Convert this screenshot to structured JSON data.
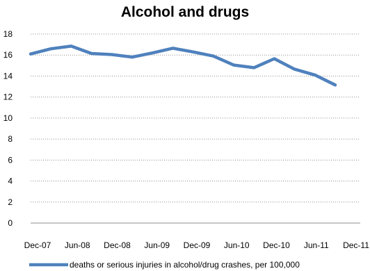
{
  "chart_data": {
    "type": "line",
    "title": "Alcohol and drugs",
    "xlabel": "",
    "ylabel": "",
    "ylim": [
      0,
      18
    ],
    "yticks": [
      0,
      2,
      4,
      6,
      8,
      10,
      12,
      14,
      16,
      18
    ],
    "xtick_labels": [
      "Dec-07",
      "Jun-08",
      "Dec-08",
      "Jun-09",
      "Dec-09",
      "Jun-10",
      "Dec-10",
      "Jun-11",
      "Dec-11"
    ],
    "grid": "horizontal dotted",
    "legend_position": "bottom",
    "x": [
      "Dec-07",
      "Mar-08",
      "Jun-08",
      "Sep-08",
      "Dec-08",
      "Mar-09",
      "Jun-09",
      "Sep-09",
      "Dec-09",
      "Mar-10",
      "Jun-10",
      "Sep-10",
      "Dec-10",
      "Mar-11",
      "Jun-11",
      "Sep-11"
    ],
    "series": [
      {
        "name": "deaths or serious injuries in alcohol/drug crashes, per 100,000",
        "color": "#4f81bd",
        "values": [
          16.1,
          16.6,
          16.85,
          16.15,
          16.05,
          15.8,
          16.2,
          16.65,
          16.3,
          15.9,
          15.05,
          14.8,
          15.65,
          14.65,
          14.1,
          13.15
        ]
      }
    ]
  }
}
